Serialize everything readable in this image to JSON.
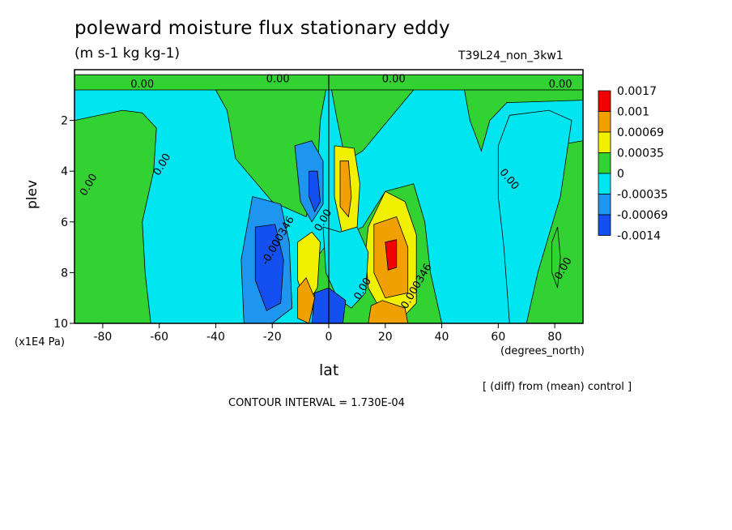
{
  "colors": {
    "red": "#f00000",
    "orange": "#f0a000",
    "yellow": "#f0f000",
    "green": "#32d232",
    "cyan": "#00e6f0",
    "blue": "#1e96f0",
    "darkblue": "#1450f0"
  },
  "chart_data": {
    "type": "heatmap",
    "title": "poleward moisture flux stationary eddy",
    "units": "(m s-1 kg kg-1)",
    "run_label": "T39L24_non_3kw1",
    "xlabel": "lat",
    "x_units": "(degrees_north)",
    "ylabel": "plev",
    "y_scale_label": "(x1E4 Pa)",
    "diff_label": "[ (diff) from (mean) control ]",
    "contour_info": "CONTOUR INTERVAL = 1.730E-04",
    "xlim": [
      -90,
      90
    ],
    "ylim": [
      10,
      0
    ],
    "x_ticks": [
      "-80",
      "-60",
      "-40",
      "-20",
      "0",
      "20",
      "40",
      "60",
      "80"
    ],
    "y_ticks": [
      "2",
      "4",
      "6",
      "8",
      "10"
    ],
    "legend": {
      "levels": [
        "0.0017",
        "0.001",
        "0.00069",
        "0.00035",
        "0",
        "-0.00035",
        "-0.00069",
        "-0.0014"
      ],
      "colors": [
        "red",
        "orange",
        "yellow",
        "green",
        "cyan",
        "blue",
        "darkblue"
      ]
    },
    "contour_labels": [
      {
        "text": "0.00",
        "x": -66,
        "y": 0.7
      },
      {
        "text": "0.00",
        "x": -18,
        "y": 0.5
      },
      {
        "text": "0.00",
        "x": 23,
        "y": 0.5
      },
      {
        "text": "0.00",
        "x": 82,
        "y": 0.7
      },
      {
        "text": "0.00",
        "x": -58,
        "y": 3.8
      },
      {
        "text": "0.00",
        "x": -84,
        "y": 4.6
      },
      {
        "text": "0.00",
        "x": 63,
        "y": 4.4
      },
      {
        "text": "0.00",
        "x": 84,
        "y": 7.9
      },
      {
        "text": "0.00",
        "x": -1,
        "y": 6.0
      },
      {
        "text": "-0.000346",
        "x": -17,
        "y": 6.8
      },
      {
        "text": "0.000346",
        "x": 32,
        "y": 8.6
      },
      {
        "text": "0.00",
        "x": 13,
        "y": 8.7
      }
    ]
  }
}
